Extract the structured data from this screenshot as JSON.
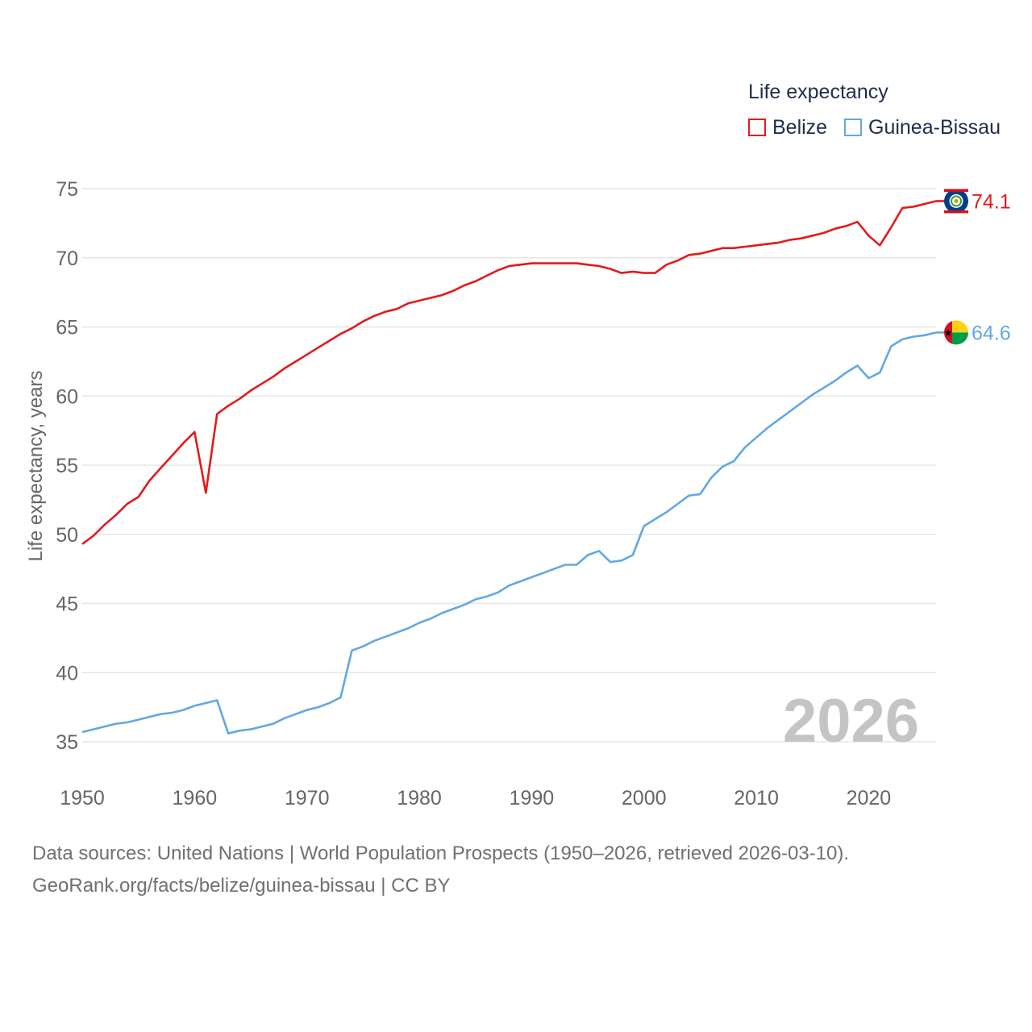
{
  "chart_data": {
    "type": "line",
    "title": "",
    "xlabel": "",
    "ylabel": "Life expectancy, years",
    "legend_title": "Life expectancy",
    "legend_position": "top-right",
    "xlim": [
      1950,
      2026
    ],
    "ylim": [
      33,
      77
    ],
    "x_ticks": [
      1950,
      1960,
      1970,
      1980,
      1990,
      2000,
      2010,
      2020
    ],
    "y_ticks": [
      35,
      40,
      45,
      50,
      55,
      60,
      65,
      70,
      75
    ],
    "grid": true,
    "year_label": "2026",
    "x": [
      1950,
      1951,
      1952,
      1953,
      1954,
      1955,
      1956,
      1957,
      1958,
      1959,
      1960,
      1961,
      1962,
      1963,
      1964,
      1965,
      1966,
      1967,
      1968,
      1969,
      1970,
      1971,
      1972,
      1973,
      1974,
      1975,
      1976,
      1977,
      1978,
      1979,
      1980,
      1981,
      1982,
      1983,
      1984,
      1985,
      1986,
      1987,
      1988,
      1989,
      1990,
      1991,
      1992,
      1993,
      1994,
      1995,
      1996,
      1997,
      1998,
      1999,
      2000,
      2001,
      2002,
      2003,
      2004,
      2005,
      2006,
      2007,
      2008,
      2009,
      2010,
      2011,
      2012,
      2013,
      2014,
      2015,
      2016,
      2017,
      2018,
      2019,
      2020,
      2021,
      2022,
      2023,
      2024,
      2025,
      2026
    ],
    "series": [
      {
        "name": "Belize",
        "color": "#e31a1c",
        "end_label": "74.1",
        "flag": "belize-flag-icon",
        "values": [
          49.3,
          49.9,
          50.7,
          51.4,
          52.2,
          52.7,
          53.9,
          54.8,
          55.7,
          56.6,
          57.4,
          53.0,
          58.7,
          59.3,
          59.8,
          60.4,
          60.9,
          61.4,
          62.0,
          62.5,
          63.0,
          63.5,
          64.0,
          64.5,
          64.9,
          65.4,
          65.8,
          66.1,
          66.3,
          66.7,
          66.9,
          67.1,
          67.3,
          67.6,
          68.0,
          68.3,
          68.7,
          69.1,
          69.4,
          69.5,
          69.6,
          69.6,
          69.6,
          69.6,
          69.6,
          69.5,
          69.4,
          69.2,
          68.9,
          69.0,
          68.9,
          68.9,
          69.5,
          69.8,
          70.2,
          70.3,
          70.5,
          70.7,
          70.7,
          70.8,
          70.9,
          71.0,
          71.1,
          71.3,
          71.4,
          71.6,
          71.8,
          72.1,
          72.3,
          72.6,
          71.6,
          70.9,
          72.2,
          73.6,
          73.7,
          73.9,
          74.1
        ]
      },
      {
        "name": "Guinea-Bissau",
        "color": "#62a8e5",
        "end_label": "64.6",
        "flag": "guinea-bissau-flag-icon",
        "values": [
          35.7,
          35.9,
          36.1,
          36.3,
          36.4,
          36.6,
          36.8,
          37.0,
          37.1,
          37.3,
          37.6,
          37.8,
          38.0,
          35.6,
          35.8,
          35.9,
          36.1,
          36.3,
          36.7,
          37.0,
          37.3,
          37.5,
          37.8,
          38.2,
          41.6,
          41.9,
          42.3,
          42.6,
          42.9,
          43.2,
          43.6,
          43.9,
          44.3,
          44.6,
          44.9,
          45.3,
          45.5,
          45.8,
          46.3,
          46.6,
          46.9,
          47.2,
          47.5,
          47.8,
          47.8,
          48.5,
          48.8,
          48.0,
          48.1,
          48.5,
          50.6,
          51.1,
          51.6,
          52.2,
          52.8,
          52.9,
          54.1,
          54.9,
          55.3,
          56.3,
          57.0,
          57.7,
          58.3,
          58.9,
          59.5,
          60.1,
          60.6,
          61.1,
          61.7,
          62.2,
          61.3,
          61.7,
          63.6,
          64.1,
          64.3,
          64.4,
          64.6
        ]
      }
    ]
  },
  "footer": {
    "source_line": "Data sources: United Nations | World Population Prospects (1950–2026, retrieved 2026-03-10).",
    "credit_line": "GeoRank.org/facts/belize/guinea-bissau | CC BY"
  }
}
